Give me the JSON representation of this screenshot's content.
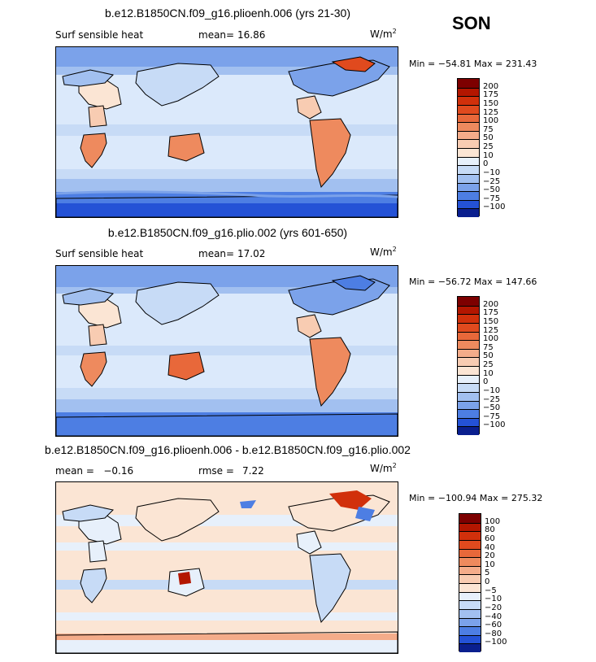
{
  "season": "SON",
  "panels": [
    {
      "title": "b.e12.B1850CN.f09_g16.plioenh.006 (yrs 21-30)",
      "left_label": "Surf sensible heat",
      "stat_label": "mean=",
      "stat_value": "16.86",
      "units": "W/m",
      "units_exp": "2",
      "min_max": "Min = −54.81  Max = 231.43",
      "colorbar": {
        "labels": [
          "200",
          "175",
          "150",
          "125",
          "100",
          "75",
          "50",
          "25",
          "10",
          "0",
          "−10",
          "−25",
          "−50",
          "−75",
          "−100"
        ],
        "colors": [
          "#7d0000",
          "#b31600",
          "#d1300b",
          "#e04a1e",
          "#e8683a",
          "#ee8a5e",
          "#f4ac8a",
          "#f8ccb2",
          "#fbe5d4",
          "#e7f0fb",
          "#c7dbf6",
          "#a2c0f0",
          "#7ba2ea",
          "#4d7ee3",
          "#2452d6",
          "#0a1f8e"
        ]
      }
    },
    {
      "title": "b.e12.B1850CN.f09_g16.plio.002 (yrs 601-650)",
      "left_label": "Surf sensible heat",
      "stat_label": "mean=",
      "stat_value": "17.02",
      "units": "W/m",
      "units_exp": "2",
      "min_max": "Min = −56.72  Max = 147.66",
      "colorbar": {
        "labels": [
          "200",
          "175",
          "150",
          "125",
          "100",
          "75",
          "50",
          "25",
          "10",
          "0",
          "−10",
          "−25",
          "−50",
          "−75",
          "−100"
        ],
        "colors": [
          "#7d0000",
          "#b31600",
          "#d1300b",
          "#e04a1e",
          "#e8683a",
          "#ee8a5e",
          "#f4ac8a",
          "#f8ccb2",
          "#fbe5d4",
          "#e7f0fb",
          "#c7dbf6",
          "#a2c0f0",
          "#7ba2ea",
          "#4d7ee3",
          "#2452d6",
          "#0a1f8e"
        ]
      }
    },
    {
      "title": "b.e12.B1850CN.f09_g16.plioenh.006 - b.e12.B1850CN.f09_g16.plio.002",
      "left_label": "mean =   −0.16",
      "stat_label": "rmse =",
      "stat_value": "7.22",
      "units": "W/m",
      "units_exp": "2",
      "min_max": "Min = −100.94  Max = 275.32",
      "colorbar": {
        "labels": [
          "100",
          "80",
          "60",
          "40",
          "20",
          "10",
          "5",
          "0",
          "−5",
          "−10",
          "−20",
          "−40",
          "−60",
          "−80",
          "−100"
        ],
        "colors": [
          "#7d0000",
          "#b31600",
          "#d1300b",
          "#e04a1e",
          "#e8683a",
          "#ee8a5e",
          "#f4ac8a",
          "#f8ccb2",
          "#fbe5d4",
          "#e7f0fb",
          "#c7dbf6",
          "#a2c0f0",
          "#7ba2ea",
          "#4d7ee3",
          "#2452d6",
          "#0a1f8e"
        ]
      }
    }
  ]
}
